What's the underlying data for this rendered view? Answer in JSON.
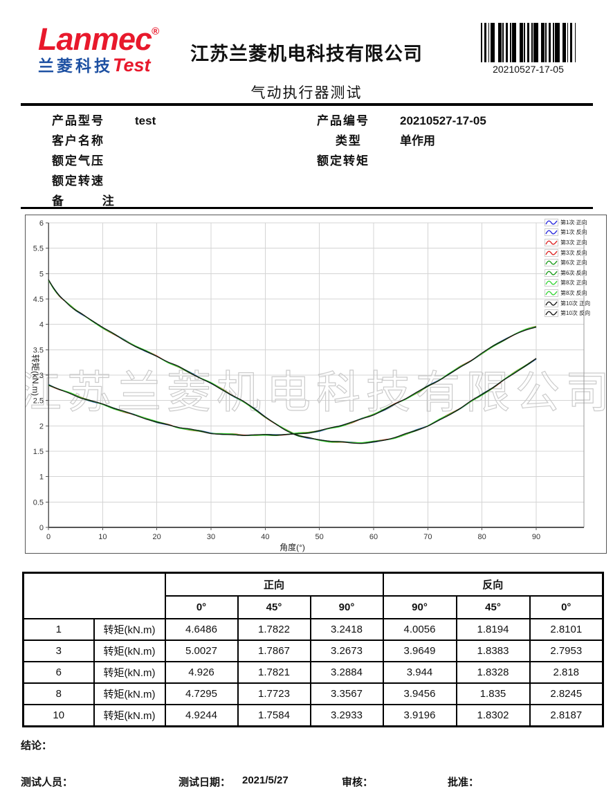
{
  "header": {
    "logo_main": "Lanmec",
    "logo_reg": "®",
    "logo_sub_cn": "兰菱科技",
    "logo_sub_en": "Test",
    "company": "江苏兰菱机电科技有限公司",
    "doc_title": "气动执行器测试",
    "barcode_text": "20210527-17-05"
  },
  "colors": {
    "logo_red": "#e8192c",
    "logo_blue": "#1d50a2",
    "grid": "#d4d4d4",
    "axis": "#555555",
    "watermark": "#c6c6c6"
  },
  "info": {
    "left": [
      {
        "label": "产品型号",
        "value": "test"
      },
      {
        "label": "客户名称",
        "value": ""
      },
      {
        "label": "额定气压",
        "value": ""
      },
      {
        "label": "额定转速",
        "value": ""
      },
      {
        "label": "备        注",
        "value": ""
      }
    ],
    "right": [
      {
        "label": "产品编号",
        "value": "20210527-17-05"
      },
      {
        "label": "    类型",
        "value": "单作用"
      },
      {
        "label": "额定转矩",
        "value": ""
      }
    ]
  },
  "chart_data": {
    "type": "line",
    "title": "",
    "xlabel": "角度(°)",
    "ylabel": "转矩(kN.m)",
    "xlim": [
      0,
      90
    ],
    "ylim": [
      0,
      6
    ],
    "xticks": [
      0,
      10,
      20,
      30,
      40,
      50,
      60,
      70,
      80,
      90
    ],
    "yticks": [
      0,
      0.5,
      1,
      1.5,
      2,
      2.5,
      3,
      3.5,
      4,
      4.5,
      5,
      5.5,
      6
    ],
    "grid": true,
    "legend_position": "right",
    "watermark": "江苏兰菱机电科技有限公司",
    "series": [
      {
        "name": "第1次 正向",
        "color": "#2626dd",
        "curve": "forward"
      },
      {
        "name": "第1次 反向",
        "color": "#2626dd",
        "curve": "reverse"
      },
      {
        "name": "第3次 正向",
        "color": "#dd2020",
        "curve": "forward"
      },
      {
        "name": "第3次 反向",
        "color": "#dd2020",
        "curve": "reverse"
      },
      {
        "name": "第6次 正向",
        "color": "#169916",
        "curve": "forward"
      },
      {
        "name": "第6次 反向",
        "color": "#169916",
        "curve": "reverse"
      },
      {
        "name": "第8次 正向",
        "color": "#35d435",
        "curve": "forward"
      },
      {
        "name": "第8次 反向",
        "color": "#35d435",
        "curve": "reverse"
      },
      {
        "name": "第10次 正向",
        "color": "#141414",
        "curve": "forward"
      },
      {
        "name": "第10次 反向",
        "color": "#141414",
        "curve": "reverse"
      }
    ],
    "curves": {
      "forward": [
        [
          0,
          4.87
        ],
        [
          1,
          4.7
        ],
        [
          2,
          4.57
        ],
        [
          3,
          4.46
        ],
        [
          4,
          4.37
        ],
        [
          5,
          4.29
        ],
        [
          6,
          4.21
        ],
        [
          8,
          4.07
        ],
        [
          10,
          3.94
        ],
        [
          12,
          3.81
        ],
        [
          14,
          3.69
        ],
        [
          16,
          3.58
        ],
        [
          18,
          3.47
        ],
        [
          20,
          3.37
        ],
        [
          22,
          3.26
        ],
        [
          24,
          3.16
        ],
        [
          26,
          3.05
        ],
        [
          28,
          2.95
        ],
        [
          30,
          2.84
        ],
        [
          32,
          2.72
        ],
        [
          34,
          2.6
        ],
        [
          36,
          2.47
        ],
        [
          38,
          2.33
        ],
        [
          40,
          2.18
        ],
        [
          42,
          2.03
        ],
        [
          44,
          1.91
        ],
        [
          46,
          1.82
        ],
        [
          48,
          1.76
        ],
        [
          50,
          1.72
        ],
        [
          52,
          1.695
        ],
        [
          54,
          1.68
        ],
        [
          56,
          1.67
        ],
        [
          58,
          1.67
        ],
        [
          60,
          1.685
        ],
        [
          62,
          1.72
        ],
        [
          64,
          1.77
        ],
        [
          66,
          1.835
        ],
        [
          68,
          1.915
        ],
        [
          70,
          2.005
        ],
        [
          72,
          2.11
        ],
        [
          74,
          2.225
        ],
        [
          76,
          2.35
        ],
        [
          78,
          2.48
        ],
        [
          80,
          2.615
        ],
        [
          82,
          2.755
        ],
        [
          84,
          2.9
        ],
        [
          86,
          3.05
        ],
        [
          88,
          3.19
        ],
        [
          90,
          3.32
        ]
      ],
      "reverse": [
        [
          0,
          2.81
        ],
        [
          2,
          2.72
        ],
        [
          4,
          2.64
        ],
        [
          6,
          2.56
        ],
        [
          8,
          2.49
        ],
        [
          10,
          2.42
        ],
        [
          12,
          2.35
        ],
        [
          14,
          2.28
        ],
        [
          16,
          2.21
        ],
        [
          18,
          2.15
        ],
        [
          20,
          2.08
        ],
        [
          22,
          2.02
        ],
        [
          24,
          1.97
        ],
        [
          26,
          1.93
        ],
        [
          28,
          1.89
        ],
        [
          30,
          1.86
        ],
        [
          32,
          1.84
        ],
        [
          34,
          1.828
        ],
        [
          36,
          1.82
        ],
        [
          38,
          1.816
        ],
        [
          40,
          1.817
        ],
        [
          42,
          1.822
        ],
        [
          44,
          1.832
        ],
        [
          46,
          1.848
        ],
        [
          48,
          1.872
        ],
        [
          50,
          1.905
        ],
        [
          52,
          1.95
        ],
        [
          54,
          2.005
        ],
        [
          56,
          2.07
        ],
        [
          58,
          2.145
        ],
        [
          60,
          2.23
        ],
        [
          62,
          2.325
        ],
        [
          64,
          2.43
        ],
        [
          66,
          2.54
        ],
        [
          68,
          2.655
        ],
        [
          70,
          2.775
        ],
        [
          72,
          2.9
        ],
        [
          74,
          3.03
        ],
        [
          76,
          3.16
        ],
        [
          78,
          3.29
        ],
        [
          80,
          3.425
        ],
        [
          82,
          3.56
        ],
        [
          84,
          3.69
        ],
        [
          86,
          3.8
        ],
        [
          88,
          3.89
        ],
        [
          90,
          3.96
        ]
      ]
    }
  },
  "table": {
    "group_headers": [
      "正向",
      "反向"
    ],
    "angle_headers": [
      "0°",
      "45°",
      "90°",
      "90°",
      "45°",
      "0°"
    ],
    "rows": [
      {
        "cycle": "1",
        "metric": "转矩(kN.m)",
        "values": [
          "4.6486",
          "1.7822",
          "3.2418",
          "4.0056",
          "1.8194",
          "2.8101"
        ]
      },
      {
        "cycle": "3",
        "metric": "转矩(kN.m)",
        "values": [
          "5.0027",
          "1.7867",
          "3.2673",
          "3.9649",
          "1.8383",
          "2.7953"
        ]
      },
      {
        "cycle": "6",
        "metric": "转矩(kN.m)",
        "values": [
          "4.926",
          "1.7821",
          "3.2884",
          "3.944",
          "1.8328",
          "2.818"
        ]
      },
      {
        "cycle": "8",
        "metric": "转矩(kN.m)",
        "values": [
          "4.7295",
          "1.7723",
          "3.3567",
          "3.9456",
          "1.835",
          "2.8245"
        ]
      },
      {
        "cycle": "10",
        "metric": "转矩(kN.m)",
        "values": [
          "4.9244",
          "1.7584",
          "3.2933",
          "3.9196",
          "1.8302",
          "2.8187"
        ]
      }
    ]
  },
  "footer": {
    "conclusion_label": "结论：",
    "tester_label": "测试人员：",
    "date_label": "测试日期：",
    "date_value": "2021/5/27",
    "reviewer_label": "审核：",
    "approver_label": "批准："
  }
}
